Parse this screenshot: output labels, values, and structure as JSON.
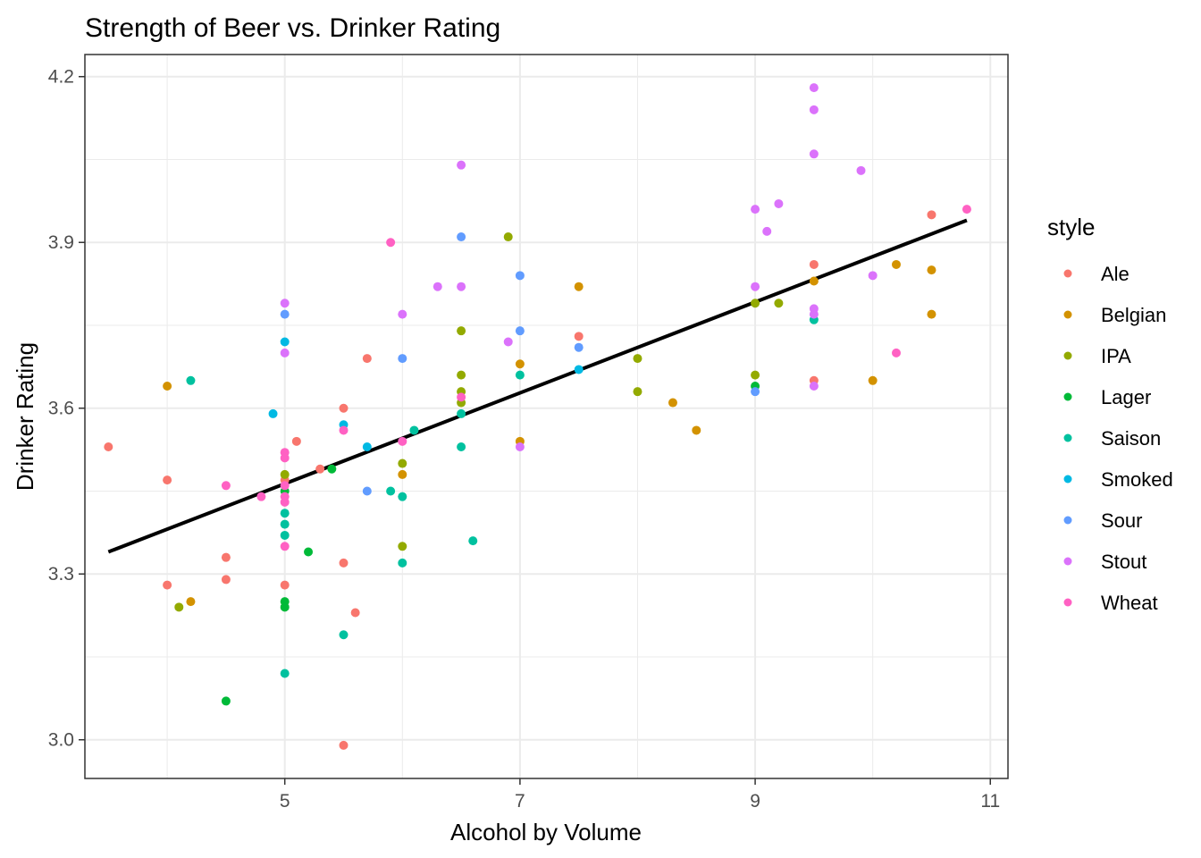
{
  "chart_data": {
    "type": "scatter",
    "title": "Strength of Beer vs. Drinker Rating",
    "xlabel": "Alcohol by Volume",
    "ylabel": "Drinker Rating",
    "xlim": [
      3.3,
      11.15
    ],
    "ylim": [
      2.93,
      4.24
    ],
    "x_ticks": [
      5,
      7,
      9,
      11
    ],
    "x_tick_labels": [
      "5",
      "7",
      "9",
      "11"
    ],
    "x_minor_ticks": [
      4,
      6,
      8,
      10
    ],
    "y_ticks": [
      3.0,
      3.3,
      3.6,
      3.9,
      4.2
    ],
    "y_tick_labels": [
      "3.0",
      "3.3",
      "3.6",
      "3.9",
      "4.2"
    ],
    "y_minor_ticks": [
      3.15,
      3.45,
      3.75,
      4.05
    ],
    "grid": true,
    "legend": {
      "title": "style",
      "position": "right",
      "entries": [
        {
          "label": "Ale",
          "color": "#F8766D"
        },
        {
          "label": "Belgian",
          "color": "#D39200"
        },
        {
          "label": "IPA",
          "color": "#93AA00"
        },
        {
          "label": "Lager",
          "color": "#00BA38"
        },
        {
          "label": "Saison",
          "color": "#00C19F"
        },
        {
          "label": "Smoked",
          "color": "#00B9E3"
        },
        {
          "label": "Sour",
          "color": "#619CFF"
        },
        {
          "label": "Stout",
          "color": "#DB72FB"
        },
        {
          "label": "Wheat",
          "color": "#FF61C3"
        }
      ]
    },
    "trend_line": {
      "type": "linear",
      "x": [
        3.5,
        10.8
      ],
      "y": [
        3.34,
        3.94
      ],
      "color": "#000000"
    },
    "points": [
      {
        "style": "Ale",
        "x": 3.5,
        "y": 3.53
      },
      {
        "style": "Ale",
        "x": 4.0,
        "y": 3.47
      },
      {
        "style": "Ale",
        "x": 4.0,
        "y": 3.28
      },
      {
        "style": "Ale",
        "x": 4.5,
        "y": 3.33
      },
      {
        "style": "Ale",
        "x": 4.5,
        "y": 3.29
      },
      {
        "style": "Ale",
        "x": 5.0,
        "y": 3.47
      },
      {
        "style": "Ale",
        "x": 5.0,
        "y": 3.28
      },
      {
        "style": "Ale",
        "x": 5.1,
        "y": 3.54
      },
      {
        "style": "Ale",
        "x": 5.3,
        "y": 3.49
      },
      {
        "style": "Ale",
        "x": 5.5,
        "y": 3.6
      },
      {
        "style": "Ale",
        "x": 5.5,
        "y": 3.32
      },
      {
        "style": "Ale",
        "x": 5.5,
        "y": 2.99
      },
      {
        "style": "Ale",
        "x": 5.6,
        "y": 3.23
      },
      {
        "style": "Ale",
        "x": 5.7,
        "y": 3.69
      },
      {
        "style": "Ale",
        "x": 7.5,
        "y": 3.73
      },
      {
        "style": "Ale",
        "x": 9.5,
        "y": 3.86
      },
      {
        "style": "Ale",
        "x": 9.5,
        "y": 3.65
      },
      {
        "style": "Ale",
        "x": 10.5,
        "y": 3.95
      },
      {
        "style": "Belgian",
        "x": 4.0,
        "y": 3.64
      },
      {
        "style": "Belgian",
        "x": 4.2,
        "y": 3.25
      },
      {
        "style": "Belgian",
        "x": 6.0,
        "y": 3.48
      },
      {
        "style": "Belgian",
        "x": 7.0,
        "y": 3.68
      },
      {
        "style": "Belgian",
        "x": 7.0,
        "y": 3.54
      },
      {
        "style": "Belgian",
        "x": 7.5,
        "y": 3.82
      },
      {
        "style": "Belgian",
        "x": 8.3,
        "y": 3.61
      },
      {
        "style": "Belgian",
        "x": 8.5,
        "y": 3.56
      },
      {
        "style": "Belgian",
        "x": 9.5,
        "y": 3.83
      },
      {
        "style": "Belgian",
        "x": 10.0,
        "y": 3.65
      },
      {
        "style": "Belgian",
        "x": 10.2,
        "y": 3.86
      },
      {
        "style": "Belgian",
        "x": 10.5,
        "y": 3.85
      },
      {
        "style": "Belgian",
        "x": 10.5,
        "y": 3.77
      },
      {
        "style": "IPA",
        "x": 4.1,
        "y": 3.24
      },
      {
        "style": "IPA",
        "x": 5.0,
        "y": 3.48
      },
      {
        "style": "IPA",
        "x": 6.0,
        "y": 3.5
      },
      {
        "style": "IPA",
        "x": 6.0,
        "y": 3.35
      },
      {
        "style": "IPA",
        "x": 6.5,
        "y": 3.74
      },
      {
        "style": "IPA",
        "x": 6.5,
        "y": 3.66
      },
      {
        "style": "IPA",
        "x": 6.5,
        "y": 3.63
      },
      {
        "style": "IPA",
        "x": 6.5,
        "y": 3.61
      },
      {
        "style": "IPA",
        "x": 6.9,
        "y": 3.91
      },
      {
        "style": "IPA",
        "x": 8.0,
        "y": 3.69
      },
      {
        "style": "IPA",
        "x": 8.0,
        "y": 3.63
      },
      {
        "style": "IPA",
        "x": 9.0,
        "y": 3.79
      },
      {
        "style": "IPA",
        "x": 9.0,
        "y": 3.66
      },
      {
        "style": "IPA",
        "x": 9.2,
        "y": 3.79
      },
      {
        "style": "Lager",
        "x": 4.5,
        "y": 3.07
      },
      {
        "style": "Lager",
        "x": 5.0,
        "y": 3.45
      },
      {
        "style": "Lager",
        "x": 5.0,
        "y": 3.25
      },
      {
        "style": "Lager",
        "x": 5.0,
        "y": 3.24
      },
      {
        "style": "Lager",
        "x": 5.2,
        "y": 3.34
      },
      {
        "style": "Lager",
        "x": 5.4,
        "y": 3.49
      },
      {
        "style": "Lager",
        "x": 9.0,
        "y": 3.64
      },
      {
        "style": "Saison",
        "x": 4.2,
        "y": 3.65
      },
      {
        "style": "Saison",
        "x": 5.0,
        "y": 3.41
      },
      {
        "style": "Saison",
        "x": 5.0,
        "y": 3.39
      },
      {
        "style": "Saison",
        "x": 5.0,
        "y": 3.37
      },
      {
        "style": "Saison",
        "x": 5.0,
        "y": 3.12
      },
      {
        "style": "Saison",
        "x": 5.5,
        "y": 3.19
      },
      {
        "style": "Saison",
        "x": 5.9,
        "y": 3.45
      },
      {
        "style": "Saison",
        "x": 6.0,
        "y": 3.44
      },
      {
        "style": "Saison",
        "x": 6.0,
        "y": 3.32
      },
      {
        "style": "Saison",
        "x": 6.1,
        "y": 3.56
      },
      {
        "style": "Saison",
        "x": 6.5,
        "y": 3.59
      },
      {
        "style": "Saison",
        "x": 6.5,
        "y": 3.53
      },
      {
        "style": "Saison",
        "x": 6.6,
        "y": 3.36
      },
      {
        "style": "Saison",
        "x": 7.0,
        "y": 3.66
      },
      {
        "style": "Saison",
        "x": 9.5,
        "y": 3.76
      },
      {
        "style": "Smoked",
        "x": 4.9,
        "y": 3.59
      },
      {
        "style": "Smoked",
        "x": 5.0,
        "y": 3.72
      },
      {
        "style": "Smoked",
        "x": 5.5,
        "y": 3.57
      },
      {
        "style": "Smoked",
        "x": 5.7,
        "y": 3.53
      },
      {
        "style": "Smoked",
        "x": 7.5,
        "y": 3.67
      },
      {
        "style": "Sour",
        "x": 5.0,
        "y": 3.77
      },
      {
        "style": "Sour",
        "x": 5.7,
        "y": 3.45
      },
      {
        "style": "Sour",
        "x": 6.0,
        "y": 3.69
      },
      {
        "style": "Sour",
        "x": 6.5,
        "y": 3.91
      },
      {
        "style": "Sour",
        "x": 7.0,
        "y": 3.84
      },
      {
        "style": "Sour",
        "x": 7.0,
        "y": 3.74
      },
      {
        "style": "Sour",
        "x": 7.5,
        "y": 3.71
      },
      {
        "style": "Sour",
        "x": 9.0,
        "y": 3.63
      },
      {
        "style": "Stout",
        "x": 5.0,
        "y": 3.79
      },
      {
        "style": "Stout",
        "x": 5.0,
        "y": 3.7
      },
      {
        "style": "Stout",
        "x": 6.0,
        "y": 3.77
      },
      {
        "style": "Stout",
        "x": 6.3,
        "y": 3.82
      },
      {
        "style": "Stout",
        "x": 6.5,
        "y": 4.04
      },
      {
        "style": "Stout",
        "x": 6.5,
        "y": 3.82
      },
      {
        "style": "Stout",
        "x": 6.9,
        "y": 3.72
      },
      {
        "style": "Stout",
        "x": 7.0,
        "y": 3.53
      },
      {
        "style": "Stout",
        "x": 9.0,
        "y": 3.96
      },
      {
        "style": "Stout",
        "x": 9.0,
        "y": 3.82
      },
      {
        "style": "Stout",
        "x": 9.1,
        "y": 3.92
      },
      {
        "style": "Stout",
        "x": 9.2,
        "y": 3.97
      },
      {
        "style": "Stout",
        "x": 9.5,
        "y": 4.18
      },
      {
        "style": "Stout",
        "x": 9.5,
        "y": 4.14
      },
      {
        "style": "Stout",
        "x": 9.5,
        "y": 4.06
      },
      {
        "style": "Stout",
        "x": 9.5,
        "y": 3.78
      },
      {
        "style": "Stout",
        "x": 9.5,
        "y": 3.77
      },
      {
        "style": "Stout",
        "x": 9.5,
        "y": 3.64
      },
      {
        "style": "Stout",
        "x": 9.9,
        "y": 4.03
      },
      {
        "style": "Stout",
        "x": 10.0,
        "y": 3.84
      },
      {
        "style": "Wheat",
        "x": 4.5,
        "y": 3.46
      },
      {
        "style": "Wheat",
        "x": 4.8,
        "y": 3.44
      },
      {
        "style": "Wheat",
        "x": 5.0,
        "y": 3.52
      },
      {
        "style": "Wheat",
        "x": 5.0,
        "y": 3.51
      },
      {
        "style": "Wheat",
        "x": 5.0,
        "y": 3.46
      },
      {
        "style": "Wheat",
        "x": 5.0,
        "y": 3.44
      },
      {
        "style": "Wheat",
        "x": 5.0,
        "y": 3.43
      },
      {
        "style": "Wheat",
        "x": 5.0,
        "y": 3.35
      },
      {
        "style": "Wheat",
        "x": 5.5,
        "y": 3.56
      },
      {
        "style": "Wheat",
        "x": 5.9,
        "y": 3.9
      },
      {
        "style": "Wheat",
        "x": 6.0,
        "y": 3.54
      },
      {
        "style": "Wheat",
        "x": 6.5,
        "y": 3.62
      },
      {
        "style": "Wheat",
        "x": 10.2,
        "y": 3.7
      },
      {
        "style": "Wheat",
        "x": 10.8,
        "y": 3.96
      }
    ]
  }
}
